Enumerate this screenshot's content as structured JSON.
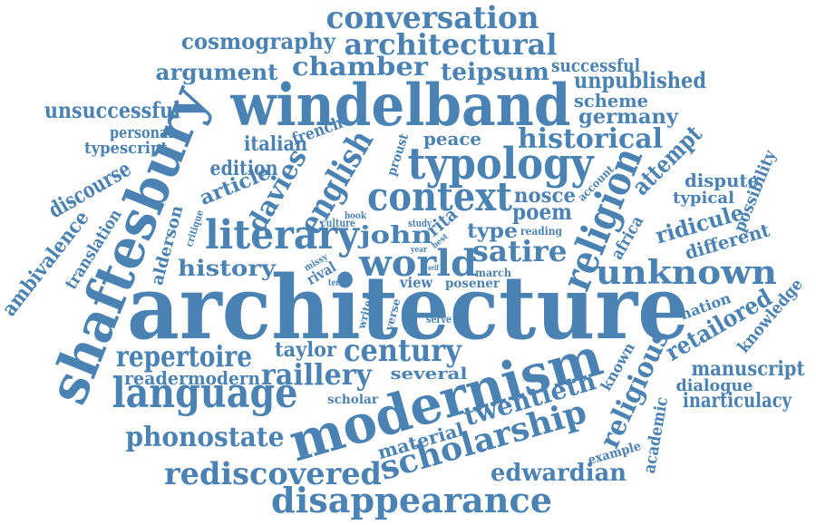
{
  "color": "#4a82b4",
  "words": {
    "architecture": "architecture",
    "windelband": "windelband",
    "shaftesbury": "shaftesbury",
    "modernism": "modernism",
    "typology": "typology",
    "context": "context",
    "literary": "literary",
    "world": "world",
    "language": "language",
    "religion": "religion",
    "unknown": "unknown",
    "conversation": "conversation",
    "architectural": "architectural",
    "cosmography": "cosmography",
    "chamber": "chamber",
    "argument": "argument",
    "teipsum": "teipsum",
    "successful": "successful",
    "unpublished": "unpublished",
    "scheme": "scheme",
    "germany": "germany",
    "unsuccessful": "unsuccessful",
    "personal": "personal",
    "typescript": "typescript",
    "french": "french",
    "italian": "italian",
    "proust": "proust",
    "peace": "peace",
    "historical": "historical",
    "edition": "edition",
    "english": "english",
    "davies": "davies",
    "attempt": "attempt",
    "dispute": "dispute",
    "typical": "typical",
    "possibility": "possibility",
    "discourse": "discourse",
    "ambivalence": "ambivalence",
    "translation": "translation",
    "alderson": "alderson",
    "critique": "critique",
    "article": "article",
    "culture": "culture",
    "book": "book",
    "study": "study",
    "rita": "rita",
    "nosce": "nosce",
    "poem": "poem",
    "account": "account",
    "africa": "africa",
    "ridicule": "ridicule",
    "different": "different",
    "john": "john",
    "type": "type",
    "reading": "reading",
    "best": "best",
    "satire": "satire",
    "history": "history",
    "missy": "missy",
    "year": "year",
    "self": "self",
    "march": "march",
    "rival": "rival",
    "term": "term",
    "view": "view",
    "posener": "posener",
    "writer": "writer",
    "verse": "verse",
    "serve": "serve",
    "knowledge": "knowledge",
    "nation": "nation",
    "retailored": "retailored",
    "repertoire": "repertoire",
    "taylor": "taylor",
    "century": "century",
    "reader": "reader",
    "modern": "modern",
    "raillery": "raillery",
    "several": "several",
    "known": "known",
    "religious": "religious",
    "manuscript": "manuscript",
    "dialogue": "dialogue",
    "inarticulacy": "inarticulacy",
    "scholar": "scholar",
    "twentieth": "twentieth",
    "phonostate": "phonostate",
    "material": "material",
    "scholarship": "scholarship",
    "academic": "academic",
    "example": "example",
    "rediscovered": "rediscovered",
    "edwardian": "edwardian",
    "disappearance": "disappearance"
  }
}
